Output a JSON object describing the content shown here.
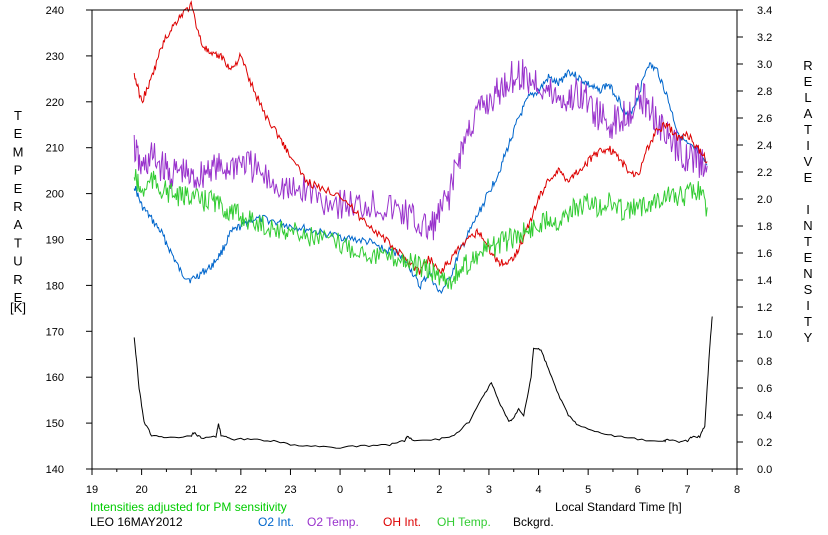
{
  "chart_data": {
    "type": "line",
    "left_axis_letters": [
      "T",
      "E",
      "M",
      "P",
      "E",
      "R",
      "A",
      "T",
      "U",
      "R",
      "E"
    ],
    "left_axis_unit": "[K]",
    "right_axis_letters": [
      "R",
      "E",
      "L",
      "A",
      "T",
      "I",
      "V",
      "E",
      "",
      "I",
      "N",
      "T",
      "E",
      "N",
      "S",
      "I",
      "T",
      "Y"
    ],
    "xlabel": "Local Standard Time [h]",
    "x_ticks": [
      "19",
      "20",
      "21",
      "22",
      "23",
      "0",
      "1",
      "2",
      "3",
      "4",
      "5",
      "6",
      "7",
      "8"
    ],
    "xlim": [
      19,
      32
    ],
    "ylim_left": [
      140,
      240
    ],
    "left_ticks": [
      "140",
      "150",
      "160",
      "170",
      "180",
      "190",
      "200",
      "210",
      "220",
      "230",
      "240"
    ],
    "ylim_right": [
      0,
      3.4
    ],
    "right_ticks": [
      "0.0",
      "0.2",
      "0.4",
      "0.6",
      "0.8",
      "1.0",
      "1.2",
      "1.4",
      "1.6",
      "1.8",
      "2.0",
      "2.2",
      "2.4",
      "2.6",
      "2.8",
      "3.0",
      "3.2",
      "3.4"
    ],
    "annotation": "Intensities adjusted for PM sensitivity",
    "annotation_color": "#00cc00",
    "station": "LEO 16MAY2012",
    "grid": false,
    "series": [
      {
        "name": "O2 Int.",
        "color": "#0066cc",
        "axis": "right",
        "x": [
          19.85,
          20.0,
          20.2,
          20.4,
          20.6,
          20.8,
          21.0,
          21.2,
          21.4,
          21.6,
          21.8,
          22.0,
          22.2,
          22.5,
          22.8,
          23.0,
          23.3,
          23.6,
          24.0,
          24.3,
          24.6,
          24.9,
          25.2,
          25.4,
          25.6,
          25.8,
          26.0,
          26.2,
          26.4,
          26.6,
          26.8,
          27.0,
          27.2,
          27.4,
          27.6,
          27.8,
          28.0,
          28.2,
          28.4,
          28.6,
          28.8,
          29.0,
          29.2,
          29.4,
          29.6,
          29.8,
          30.0,
          30.2,
          30.4,
          30.6,
          30.8,
          31.0,
          31.2,
          31.4
        ],
        "y": [
          2.1,
          1.95,
          1.85,
          1.75,
          1.6,
          1.45,
          1.4,
          1.45,
          1.5,
          1.6,
          1.75,
          1.8,
          1.85,
          1.85,
          1.82,
          1.8,
          1.78,
          1.75,
          1.72,
          1.7,
          1.68,
          1.62,
          1.6,
          1.5,
          1.35,
          1.45,
          1.3,
          1.4,
          1.6,
          1.75,
          1.9,
          2.05,
          2.2,
          2.4,
          2.6,
          2.75,
          2.8,
          2.9,
          2.85,
          2.95,
          2.9,
          2.85,
          2.8,
          2.85,
          2.75,
          2.6,
          2.75,
          3.0,
          2.95,
          2.75,
          2.5,
          2.4,
          2.35,
          2.25
        ]
      },
      {
        "name": "O2 Temp.",
        "color": "#9933cc",
        "axis": "left",
        "x": [
          19.85,
          20.0,
          20.2,
          20.4,
          20.6,
          20.8,
          21.0,
          21.2,
          21.4,
          21.6,
          21.8,
          22.0,
          22.2,
          22.5,
          22.8,
          23.0,
          23.3,
          23.6,
          24.0,
          24.3,
          24.6,
          24.9,
          25.2,
          25.4,
          25.6,
          25.8,
          26.0,
          26.2,
          26.4,
          26.6,
          26.8,
          27.0,
          27.2,
          27.4,
          27.6,
          27.8,
          28.0,
          28.2,
          28.4,
          28.6,
          28.8,
          29.0,
          29.2,
          29.4,
          29.6,
          29.8,
          30.0,
          30.2,
          30.4,
          30.6,
          30.8,
          31.0,
          31.2,
          31.4
        ],
        "y": [
          210,
          205,
          208,
          206,
          204,
          205,
          203,
          204,
          206,
          205,
          206,
          207,
          206,
          203,
          202,
          200,
          201,
          199,
          198,
          197,
          198,
          197,
          196,
          195,
          193,
          192,
          195,
          200,
          208,
          214,
          218,
          220,
          222,
          225,
          226,
          225,
          224,
          222,
          221,
          220,
          222,
          220,
          217,
          215,
          216,
          218,
          221,
          220,
          216,
          212,
          210,
          208,
          207,
          206
        ]
      },
      {
        "name": "OH Int.",
        "color": "#dd0000",
        "axis": "left",
        "x": [
          19.85,
          20.0,
          20.2,
          20.4,
          20.6,
          20.8,
          21.0,
          21.2,
          21.4,
          21.6,
          21.8,
          22.0,
          22.2,
          22.5,
          22.8,
          23.0,
          23.3,
          23.6,
          24.0,
          24.3,
          24.6,
          24.9,
          25.2,
          25.4,
          25.6,
          25.8,
          26.0,
          26.2,
          26.4,
          26.6,
          26.8,
          27.0,
          27.2,
          27.4,
          27.6,
          27.8,
          28.0,
          28.2,
          28.4,
          28.6,
          28.8,
          29.0,
          29.2,
          29.4,
          29.6,
          29.8,
          30.0,
          30.2,
          30.4,
          30.6,
          30.8,
          31.0,
          31.2,
          31.4
        ],
        "y": [
          226,
          220,
          225,
          232,
          236,
          239,
          241,
          233,
          230,
          230,
          227,
          230,
          224,
          217,
          212,
          208,
          203,
          201,
          200,
          196,
          193,
          190,
          187,
          185,
          183,
          186,
          183,
          185,
          188,
          190,
          192,
          188,
          185,
          185,
          188,
          193,
          199,
          203,
          205,
          203,
          205,
          207,
          209,
          210,
          208,
          205,
          204,
          210,
          214,
          215,
          212,
          213,
          210,
          207
        ]
      },
      {
        "name": "OH Temp.",
        "color": "#33cc33",
        "axis": "left",
        "x": [
          19.85,
          20.0,
          20.2,
          20.4,
          20.6,
          20.8,
          21.0,
          21.2,
          21.4,
          21.6,
          21.8,
          22.0,
          22.2,
          22.5,
          22.8,
          23.0,
          23.3,
          23.6,
          24.0,
          24.3,
          24.6,
          24.9,
          25.2,
          25.4,
          25.6,
          25.8,
          26.0,
          26.2,
          26.4,
          26.6,
          26.8,
          27.0,
          27.2,
          27.4,
          27.6,
          27.8,
          28.0,
          28.2,
          28.4,
          28.6,
          28.8,
          29.0,
          29.2,
          29.4,
          29.6,
          29.8,
          30.0,
          30.2,
          30.4,
          30.6,
          30.8,
          31.0,
          31.2,
          31.4
        ],
        "y": [
          204,
          200,
          203,
          201,
          200,
          199,
          200,
          198,
          199,
          197,
          196,
          195,
          194,
          193,
          192,
          192,
          191,
          190,
          189,
          188,
          187,
          186,
          186,
          185,
          184,
          183,
          182,
          181,
          183,
          185,
          187,
          188,
          189,
          190,
          191,
          192,
          193,
          195,
          194,
          196,
          197,
          198,
          197,
          198,
          197,
          196,
          197,
          198,
          199,
          200,
          199,
          200,
          201,
          197
        ]
      },
      {
        "name": "Bckgrd.",
        "color": "#000000",
        "axis": "right",
        "x": [
          19.85,
          19.95,
          20.05,
          20.2,
          20.5,
          21.0,
          21.05,
          21.2,
          21.5,
          21.55,
          21.6,
          21.8,
          22.2,
          22.6,
          23.0,
          23.5,
          24.0,
          24.5,
          25.0,
          25.3,
          25.35,
          25.5,
          26.0,
          26.3,
          26.6,
          26.9,
          27.05,
          27.2,
          27.4,
          27.5,
          27.6,
          27.7,
          27.85,
          27.9,
          28.05,
          28.2,
          28.4,
          28.6,
          28.8,
          29.2,
          29.6,
          30.0,
          30.5,
          30.6,
          30.8,
          31.0,
          31.1,
          31.25,
          31.35,
          31.45,
          31.5
        ],
        "y": [
          0.98,
          0.6,
          0.35,
          0.25,
          0.23,
          0.24,
          0.27,
          0.23,
          0.24,
          0.34,
          0.25,
          0.22,
          0.22,
          0.21,
          0.18,
          0.17,
          0.16,
          0.17,
          0.18,
          0.21,
          0.24,
          0.21,
          0.22,
          0.25,
          0.35,
          0.55,
          0.64,
          0.5,
          0.35,
          0.38,
          0.45,
          0.4,
          0.68,
          0.9,
          0.88,
          0.74,
          0.55,
          0.4,
          0.32,
          0.27,
          0.24,
          0.22,
          0.2,
          0.22,
          0.2,
          0.21,
          0.24,
          0.24,
          0.32,
          0.9,
          1.13
        ]
      }
    ]
  }
}
